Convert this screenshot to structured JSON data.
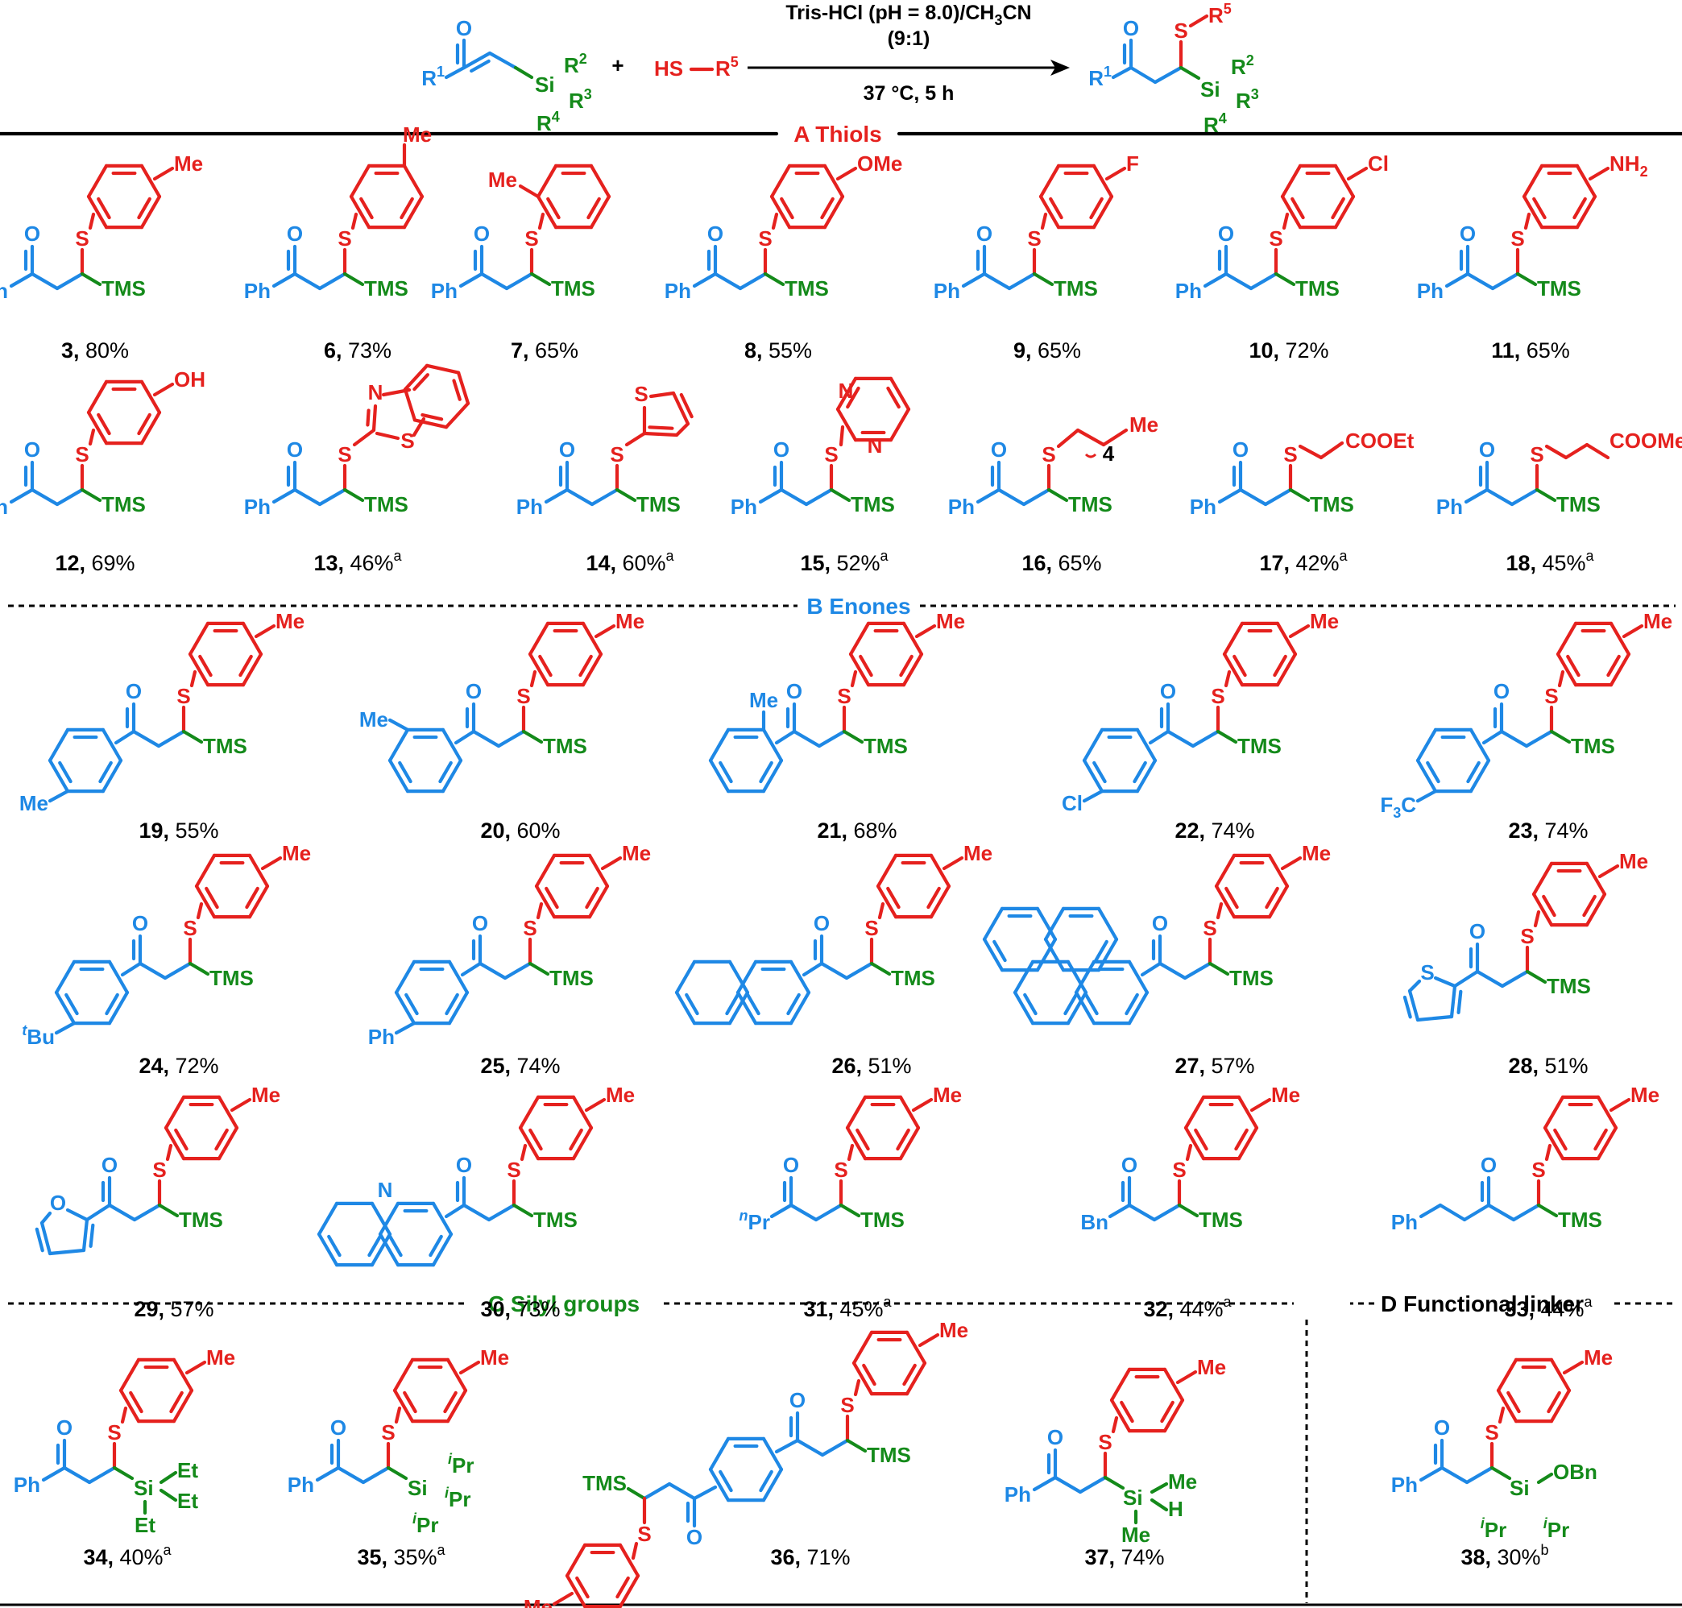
{
  "colors": {
    "enone": "#1e88e5",
    "thiol": "#e5211e",
    "silyl": "#148a1a"
  },
  "reaction": {
    "conditions_line1": "Tris-HCl (pH = 8.0)/CH",
    "conditions_sub": "3",
    "conditions_line1_end": "CN",
    "conditions_line2": "(9:1)",
    "conditions_line3": "37 °C, 5 h",
    "plus": "+",
    "thiol_label": "HS",
    "thiol_r": "R",
    "r1": "R",
    "r2": "R",
    "r3": "R",
    "r4": "R",
    "r5": "R",
    "sup1": "1",
    "sup2": "2",
    "sup3": "3",
    "sup4": "4",
    "sup5": "5",
    "o": "O",
    "s": "S",
    "si": "Si"
  },
  "sections": {
    "a": "A Thiols",
    "b": "B Enones",
    "c": "C Silyl groups",
    "d": "D Functional linker"
  },
  "labels": {
    "ph": "Ph",
    "tms": "TMS",
    "o": "O",
    "s": "S",
    "n": "N",
    "me": "Me",
    "ome": "OMe",
    "f": "F",
    "cl": "Cl",
    "nh2": "NH",
    "nh2_sub": "2",
    "oh": "OH",
    "cooet": "COOEt",
    "coome": "COOMe",
    "four": "4",
    "cf3_pre": "F",
    "cf3_sub": "3",
    "cf3_post": "C",
    "tbu_sup": "t",
    "tbu": "Bu",
    "npr_sup": "n",
    "pr": "Pr",
    "bn": "Bn",
    "et": "Et",
    "ipr_sup": "i",
    "si": "Si",
    "h": "H",
    "obn": "OBn"
  },
  "compounds": [
    {
      "id": "3",
      "yield": "80%",
      "note": ""
    },
    {
      "id": "6",
      "yield": "73%",
      "note": ""
    },
    {
      "id": "7",
      "yield": "65%",
      "note": ""
    },
    {
      "id": "8",
      "yield": "55%",
      "note": ""
    },
    {
      "id": "9",
      "yield": "65%",
      "note": ""
    },
    {
      "id": "10",
      "yield": "72%",
      "note": ""
    },
    {
      "id": "11",
      "yield": "65%",
      "note": ""
    },
    {
      "id": "12",
      "yield": "69%",
      "note": ""
    },
    {
      "id": "13",
      "yield": "46%",
      "note": "a"
    },
    {
      "id": "14",
      "yield": "60%",
      "note": "a"
    },
    {
      "id": "15",
      "yield": "52%",
      "note": "a"
    },
    {
      "id": "16",
      "yield": "65%",
      "note": ""
    },
    {
      "id": "17",
      "yield": "42%",
      "note": "a"
    },
    {
      "id": "18",
      "yield": "45%",
      "note": "a"
    },
    {
      "id": "19",
      "yield": "55%",
      "note": ""
    },
    {
      "id": "20",
      "yield": "60%",
      "note": ""
    },
    {
      "id": "21",
      "yield": "68%",
      "note": ""
    },
    {
      "id": "22",
      "yield": "74%",
      "note": ""
    },
    {
      "id": "23",
      "yield": "74%",
      "note": ""
    },
    {
      "id": "24",
      "yield": "72%",
      "note": ""
    },
    {
      "id": "25",
      "yield": "74%",
      "note": ""
    },
    {
      "id": "26",
      "yield": "51%",
      "note": ""
    },
    {
      "id": "27",
      "yield": "57%",
      "note": ""
    },
    {
      "id": "28",
      "yield": "51%",
      "note": ""
    },
    {
      "id": "29",
      "yield": "57%",
      "note": ""
    },
    {
      "id": "30",
      "yield": "73%",
      "note": ""
    },
    {
      "id": "31",
      "yield": "45%",
      "note": "a"
    },
    {
      "id": "32",
      "yield": "44%",
      "note": "a"
    },
    {
      "id": "33",
      "yield": "44%",
      "note": "a"
    },
    {
      "id": "34",
      "yield": "40%",
      "note": "a"
    },
    {
      "id": "35",
      "yield": "35%",
      "note": "a"
    },
    {
      "id": "36",
      "yield": "71%",
      "note": ""
    },
    {
      "id": "37",
      "yield": "74%",
      "note": ""
    },
    {
      "id": "38",
      "yield": "30%",
      "note": "b"
    }
  ]
}
